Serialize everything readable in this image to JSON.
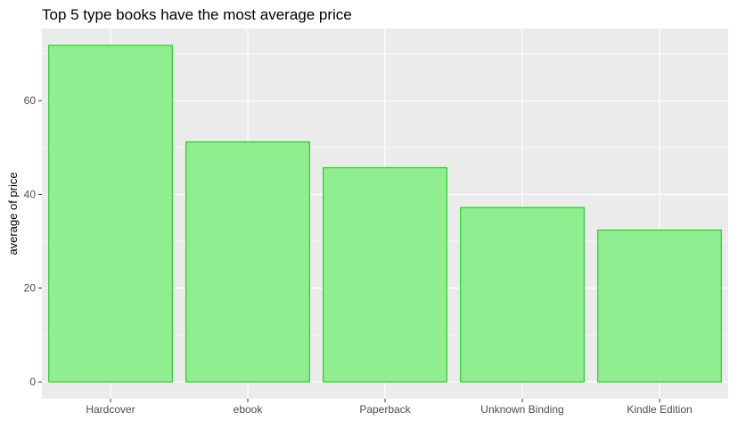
{
  "chart_data": {
    "type": "bar",
    "title": "Top 5 type books have the most average price",
    "xlabel": "",
    "ylabel": "average of price",
    "categories": [
      "Hardcover",
      "ebook",
      "Paperback",
      "Unknown Binding",
      "Kindle Edition"
    ],
    "values": [
      71.8,
      51.2,
      45.7,
      37.2,
      32.4
    ],
    "ylim": [
      -3.6,
      75.4
    ],
    "yticks": [
      0,
      20,
      40,
      60
    ],
    "ytick_labels": [
      "0",
      "20",
      "40",
      "60"
    ],
    "grid": true,
    "legend": "none",
    "colors": {
      "panel": "#ebebeb",
      "grid_major": "#ffffff",
      "bar_fill": "#90ee90",
      "bar_stroke": "#00cd00",
      "tick_text": "#4d4d4d",
      "tick_mark": "#333333"
    }
  }
}
